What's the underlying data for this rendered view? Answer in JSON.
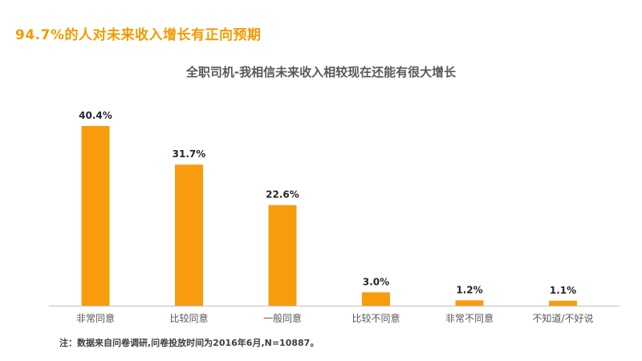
{
  "headline": "94.7%的人对未来收入增长有正向预期",
  "footnote": "注：数据来自问卷调研,问卷投放时间为2016年6月,N=10887。",
  "colors": {
    "bar": "#f89c0e",
    "headline": "#f39a00",
    "axis": "#bfbfbf"
  },
  "chart_data": {
    "type": "bar",
    "title": "全职司机-我相信未来收入相较现在还能有很大增长",
    "categories": [
      "非常同意",
      "比较同意",
      "一般同意",
      "比较不同意",
      "非常不同意",
      "不知道/不好说"
    ],
    "values": [
      40.4,
      31.7,
      22.6,
      3.0,
      1.2,
      1.1
    ],
    "data_labels": [
      "40.4%",
      "31.7%",
      "22.6%",
      "3.0%",
      "1.2%",
      "1.1%"
    ],
    "xlabel": "",
    "ylabel": "",
    "ylim": [
      0,
      45
    ],
    "grid": false,
    "legend": "none"
  }
}
